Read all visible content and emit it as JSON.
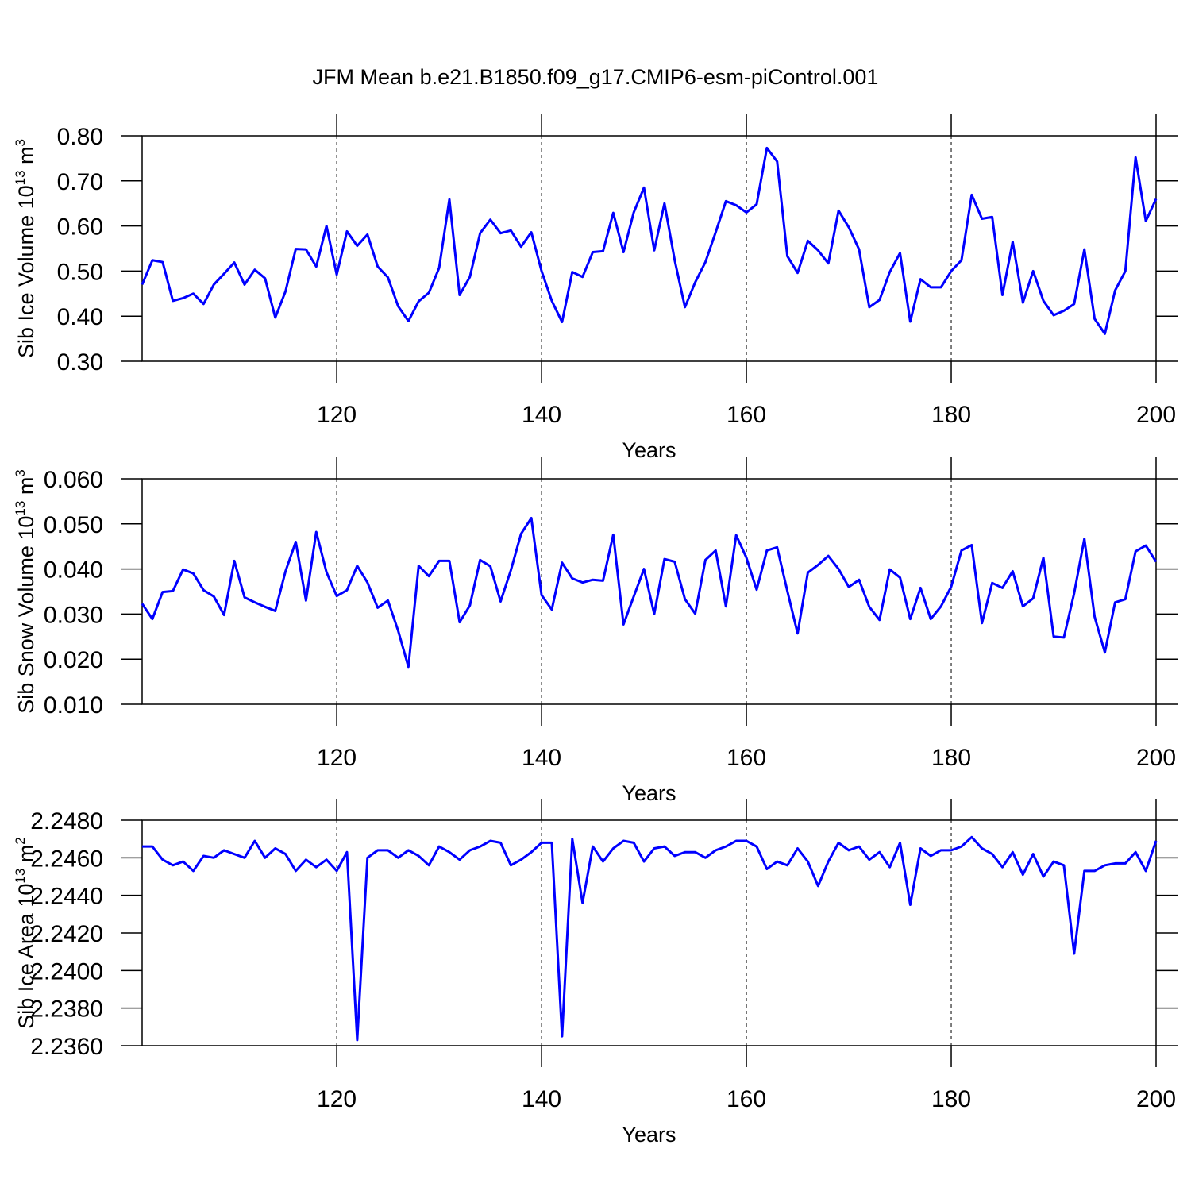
{
  "title": "JFM Mean b.e21.B1850.f09_g17.CMIP6-esm-piControl.001",
  "chart_data": [
    {
      "type": "line",
      "color": "#0000ff",
      "x_label": "Years",
      "y_label": {
        "text": "Sib Ice Volume 10",
        "power": "13",
        "unit": " m",
        "unit_power": "3"
      },
      "xlim": [
        101,
        200
      ],
      "xticks": [
        120,
        140,
        160,
        180,
        200
      ],
      "xgrid": true,
      "ylim": [
        0.3,
        0.8
      ],
      "yticks": [
        {
          "value": 0.3,
          "label": "0.30"
        },
        {
          "value": 0.4,
          "label": "0.40"
        },
        {
          "value": 0.5,
          "label": "0.50"
        },
        {
          "value": 0.6,
          "label": "0.60"
        },
        {
          "value": 0.7,
          "label": "0.70"
        },
        {
          "value": 0.8,
          "label": "0.80"
        }
      ],
      "x": [
        101,
        102,
        103,
        104,
        105,
        106,
        107,
        108,
        109,
        110,
        111,
        112,
        113,
        114,
        115,
        116,
        117,
        118,
        119,
        120,
        121,
        122,
        123,
        124,
        125,
        126,
        127,
        128,
        129,
        130,
        131,
        132,
        133,
        134,
        135,
        136,
        137,
        138,
        139,
        140,
        141,
        142,
        143,
        144,
        145,
        146,
        147,
        148,
        149,
        150,
        151,
        152,
        153,
        154,
        155,
        156,
        157,
        158,
        159,
        160,
        161,
        162,
        163,
        164,
        165,
        166,
        167,
        168,
        169,
        170,
        171,
        172,
        173,
        174,
        175,
        176,
        177,
        178,
        179,
        180,
        181,
        182,
        183,
        184,
        185,
        186,
        187,
        188,
        189,
        190,
        191,
        192,
        193,
        194,
        195,
        196,
        197,
        198,
        199,
        200
      ],
      "values": [
        0.47,
        0.524,
        0.52,
        0.434,
        0.44,
        0.45,
        0.427,
        0.47,
        0.494,
        0.519,
        0.47,
        0.503,
        0.484,
        0.397,
        0.455,
        0.549,
        0.548,
        0.51,
        0.6,
        0.492,
        0.588,
        0.556,
        0.581,
        0.51,
        0.486,
        0.422,
        0.389,
        0.433,
        0.452,
        0.507,
        0.659,
        0.447,
        0.487,
        0.584,
        0.614,
        0.584,
        0.59,
        0.554,
        0.586,
        0.5,
        0.434,
        0.387,
        0.498,
        0.487,
        0.542,
        0.544,
        0.629,
        0.542,
        0.63,
        0.685,
        0.546,
        0.65,
        0.524,
        0.42,
        0.475,
        0.52,
        0.586,
        0.655,
        0.646,
        0.63,
        0.648,
        0.773,
        0.743,
        0.533,
        0.496,
        0.567,
        0.546,
        0.517,
        0.634,
        0.597,
        0.548,
        0.42,
        0.436,
        0.498,
        0.54,
        0.388,
        0.482,
        0.464,
        0.464,
        0.5,
        0.524,
        0.669,
        0.616,
        0.62,
        0.447,
        0.565,
        0.43,
        0.5,
        0.434,
        0.402,
        0.412,
        0.427,
        0.548,
        0.394,
        0.361,
        0.457,
        0.5,
        0.752,
        0.611,
        0.66
      ]
    },
    {
      "type": "line",
      "color": "#0000ff",
      "x_label": "Years",
      "y_label": {
        "text": "Sib Snow Volume 10",
        "power": "13",
        "unit": " m",
        "unit_power": "3"
      },
      "xlim": [
        101,
        200
      ],
      "xticks": [
        120,
        140,
        160,
        180,
        200
      ],
      "xgrid": true,
      "ylim": [
        0.01,
        0.06
      ],
      "yticks": [
        {
          "value": 0.01,
          "label": "0.010"
        },
        {
          "value": 0.02,
          "label": "0.020"
        },
        {
          "value": 0.03,
          "label": "0.030"
        },
        {
          "value": 0.04,
          "label": "0.040"
        },
        {
          "value": 0.05,
          "label": "0.050"
        },
        {
          "value": 0.06,
          "label": "0.060"
        }
      ],
      "x": [
        101,
        102,
        103,
        104,
        105,
        106,
        107,
        108,
        109,
        110,
        111,
        112,
        113,
        114,
        115,
        116,
        117,
        118,
        119,
        120,
        121,
        122,
        123,
        124,
        125,
        126,
        127,
        128,
        129,
        130,
        131,
        132,
        133,
        134,
        135,
        136,
        137,
        138,
        139,
        140,
        141,
        142,
        143,
        144,
        145,
        146,
        147,
        148,
        149,
        150,
        151,
        152,
        153,
        154,
        155,
        156,
        157,
        158,
        159,
        160,
        161,
        162,
        163,
        164,
        165,
        166,
        167,
        168,
        169,
        170,
        171,
        172,
        173,
        174,
        175,
        176,
        177,
        178,
        179,
        180,
        181,
        182,
        183,
        184,
        185,
        186,
        187,
        188,
        189,
        190,
        191,
        192,
        193,
        194,
        195,
        196,
        197,
        198,
        199,
        200
      ],
      "values": [
        0.0323,
        0.0289,
        0.0349,
        0.0351,
        0.0399,
        0.039,
        0.0353,
        0.0339,
        0.0298,
        0.0418,
        0.0337,
        0.0326,
        0.0316,
        0.0307,
        0.0395,
        0.046,
        0.033,
        0.0482,
        0.0393,
        0.034,
        0.0353,
        0.0407,
        0.037,
        0.0314,
        0.033,
        0.0263,
        0.0183,
        0.0407,
        0.0384,
        0.0418,
        0.0418,
        0.0282,
        0.0319,
        0.042,
        0.0406,
        0.0328,
        0.0397,
        0.0478,
        0.0513,
        0.0342,
        0.031,
        0.0414,
        0.0379,
        0.037,
        0.0376,
        0.0374,
        0.0476,
        0.0277,
        0.0339,
        0.04,
        0.03,
        0.0422,
        0.0416,
        0.0333,
        0.0301,
        0.042,
        0.0441,
        0.0317,
        0.0475,
        0.0425,
        0.0354,
        0.0441,
        0.0448,
        0.0351,
        0.0257,
        0.0392,
        0.0409,
        0.0429,
        0.04,
        0.036,
        0.0376,
        0.0316,
        0.0287,
        0.0399,
        0.0381,
        0.0289,
        0.0358,
        0.0289,
        0.0317,
        0.0361,
        0.0441,
        0.0453,
        0.028,
        0.0369,
        0.0358,
        0.0395,
        0.0317,
        0.0335,
        0.0425,
        0.025,
        0.0248,
        0.0346,
        0.0467,
        0.0294,
        0.0215,
        0.0326,
        0.0333,
        0.0439,
        0.0452,
        0.0416
      ]
    },
    {
      "type": "line",
      "color": "#0000ff",
      "x_label": "Years",
      "y_label": {
        "text": "Sib Ice Area 10",
        "power": "13",
        "unit": " m",
        "unit_power": "2"
      },
      "xlim": [
        101,
        200
      ],
      "xticks": [
        120,
        140,
        160,
        180,
        200
      ],
      "xgrid": true,
      "ylim": [
        2.236,
        2.248
      ],
      "yticks": [
        {
          "value": 2.236,
          "label": "2.2360"
        },
        {
          "value": 2.238,
          "label": "2.2380"
        },
        {
          "value": 2.24,
          "label": "2.2400"
        },
        {
          "value": 2.242,
          "label": "2.2420"
        },
        {
          "value": 2.244,
          "label": "2.2440"
        },
        {
          "value": 2.246,
          "label": "2.2460"
        },
        {
          "value": 2.248,
          "label": "2.2480"
        }
      ],
      "x": [
        101,
        102,
        103,
        104,
        105,
        106,
        107,
        108,
        109,
        110,
        111,
        112,
        113,
        114,
        115,
        116,
        117,
        118,
        119,
        120,
        121,
        122,
        123,
        124,
        125,
        126,
        127,
        128,
        129,
        130,
        131,
        132,
        133,
        134,
        135,
        136,
        137,
        138,
        139,
        140,
        141,
        142,
        143,
        144,
        145,
        146,
        147,
        148,
        149,
        150,
        151,
        152,
        153,
        154,
        155,
        156,
        157,
        158,
        159,
        160,
        161,
        162,
        163,
        164,
        165,
        166,
        167,
        168,
        169,
        170,
        171,
        172,
        173,
        174,
        175,
        176,
        177,
        178,
        179,
        180,
        181,
        182,
        183,
        184,
        185,
        186,
        187,
        188,
        189,
        190,
        191,
        192,
        193,
        194,
        195,
        196,
        197,
        198,
        199,
        200
      ],
      "values": [
        2.2466,
        2.2466,
        2.2459,
        2.2456,
        2.2458,
        2.2453,
        2.2461,
        2.246,
        2.2464,
        2.2462,
        2.246,
        2.2469,
        2.246,
        2.2465,
        2.2462,
        2.2453,
        2.2459,
        2.2455,
        2.2459,
        2.2453,
        2.2463,
        2.2363,
        2.246,
        2.2464,
        2.2464,
        2.246,
        2.2464,
        2.2461,
        2.2456,
        2.2466,
        2.2463,
        2.2459,
        2.2464,
        2.2466,
        2.2469,
        2.2468,
        2.2456,
        2.2459,
        2.2463,
        2.2468,
        2.2468,
        2.2365,
        2.247,
        2.2436,
        2.2466,
        2.2458,
        2.2465,
        2.2469,
        2.2468,
        2.2458,
        2.2465,
        2.2466,
        2.2461,
        2.2463,
        2.2463,
        2.246,
        2.2464,
        2.2466,
        2.2469,
        2.2469,
        2.2466,
        2.2454,
        2.2458,
        2.2456,
        2.2465,
        2.2458,
        2.2445,
        2.2458,
        2.2468,
        2.2464,
        2.2466,
        2.2459,
        2.2463,
        2.2455,
        2.2468,
        2.2435,
        2.2465,
        2.2461,
        2.2464,
        2.2464,
        2.2466,
        2.2471,
        2.2465,
        2.2462,
        2.2455,
        2.2463,
        2.2451,
        2.2462,
        2.245,
        2.2458,
        2.2456,
        2.2409,
        2.2453,
        2.2453,
        2.2456,
        2.2457,
        2.2457,
        2.2463,
        2.2453,
        2.2469
      ]
    }
  ]
}
